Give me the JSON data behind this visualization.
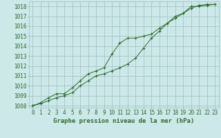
{
  "title": "Graphe pression niveau de la mer (hPa)",
  "xlabel_hours": [
    0,
    1,
    2,
    3,
    4,
    5,
    6,
    7,
    8,
    9,
    10,
    11,
    12,
    13,
    14,
    15,
    16,
    17,
    18,
    19,
    20,
    21,
    22,
    23
  ],
  "line1": [
    1008.0,
    1008.3,
    1008.8,
    1009.2,
    1009.2,
    1009.8,
    1010.5,
    1011.2,
    1011.5,
    1011.8,
    1013.2,
    1014.3,
    1014.8,
    1014.8,
    1015.0,
    1015.2,
    1015.8,
    1016.3,
    1017.0,
    1017.3,
    1018.0,
    1018.0,
    1018.1,
    1018.2
  ],
  "line2": [
    1008.0,
    1008.2,
    1008.5,
    1008.8,
    1009.0,
    1009.3,
    1010.0,
    1010.5,
    1011.0,
    1011.2,
    1011.5,
    1011.8,
    1012.2,
    1012.8,
    1013.8,
    1014.8,
    1015.5,
    1016.3,
    1016.8,
    1017.3,
    1017.8,
    1018.1,
    1018.2,
    1018.2
  ],
  "ylim_min": 1007.8,
  "ylim_max": 1018.5,
  "yticks": [
    1008,
    1009,
    1010,
    1011,
    1012,
    1013,
    1014,
    1015,
    1016,
    1017,
    1018
  ],
  "line_color": "#2d6a2d",
  "bg_color": "#cce8e8",
  "grid_color": "#9dbfbf",
  "label_color": "#2d6a2d",
  "title_color": "#2d6a2d",
  "title_fontsize": 6.5,
  "tick_fontsize": 5.5
}
